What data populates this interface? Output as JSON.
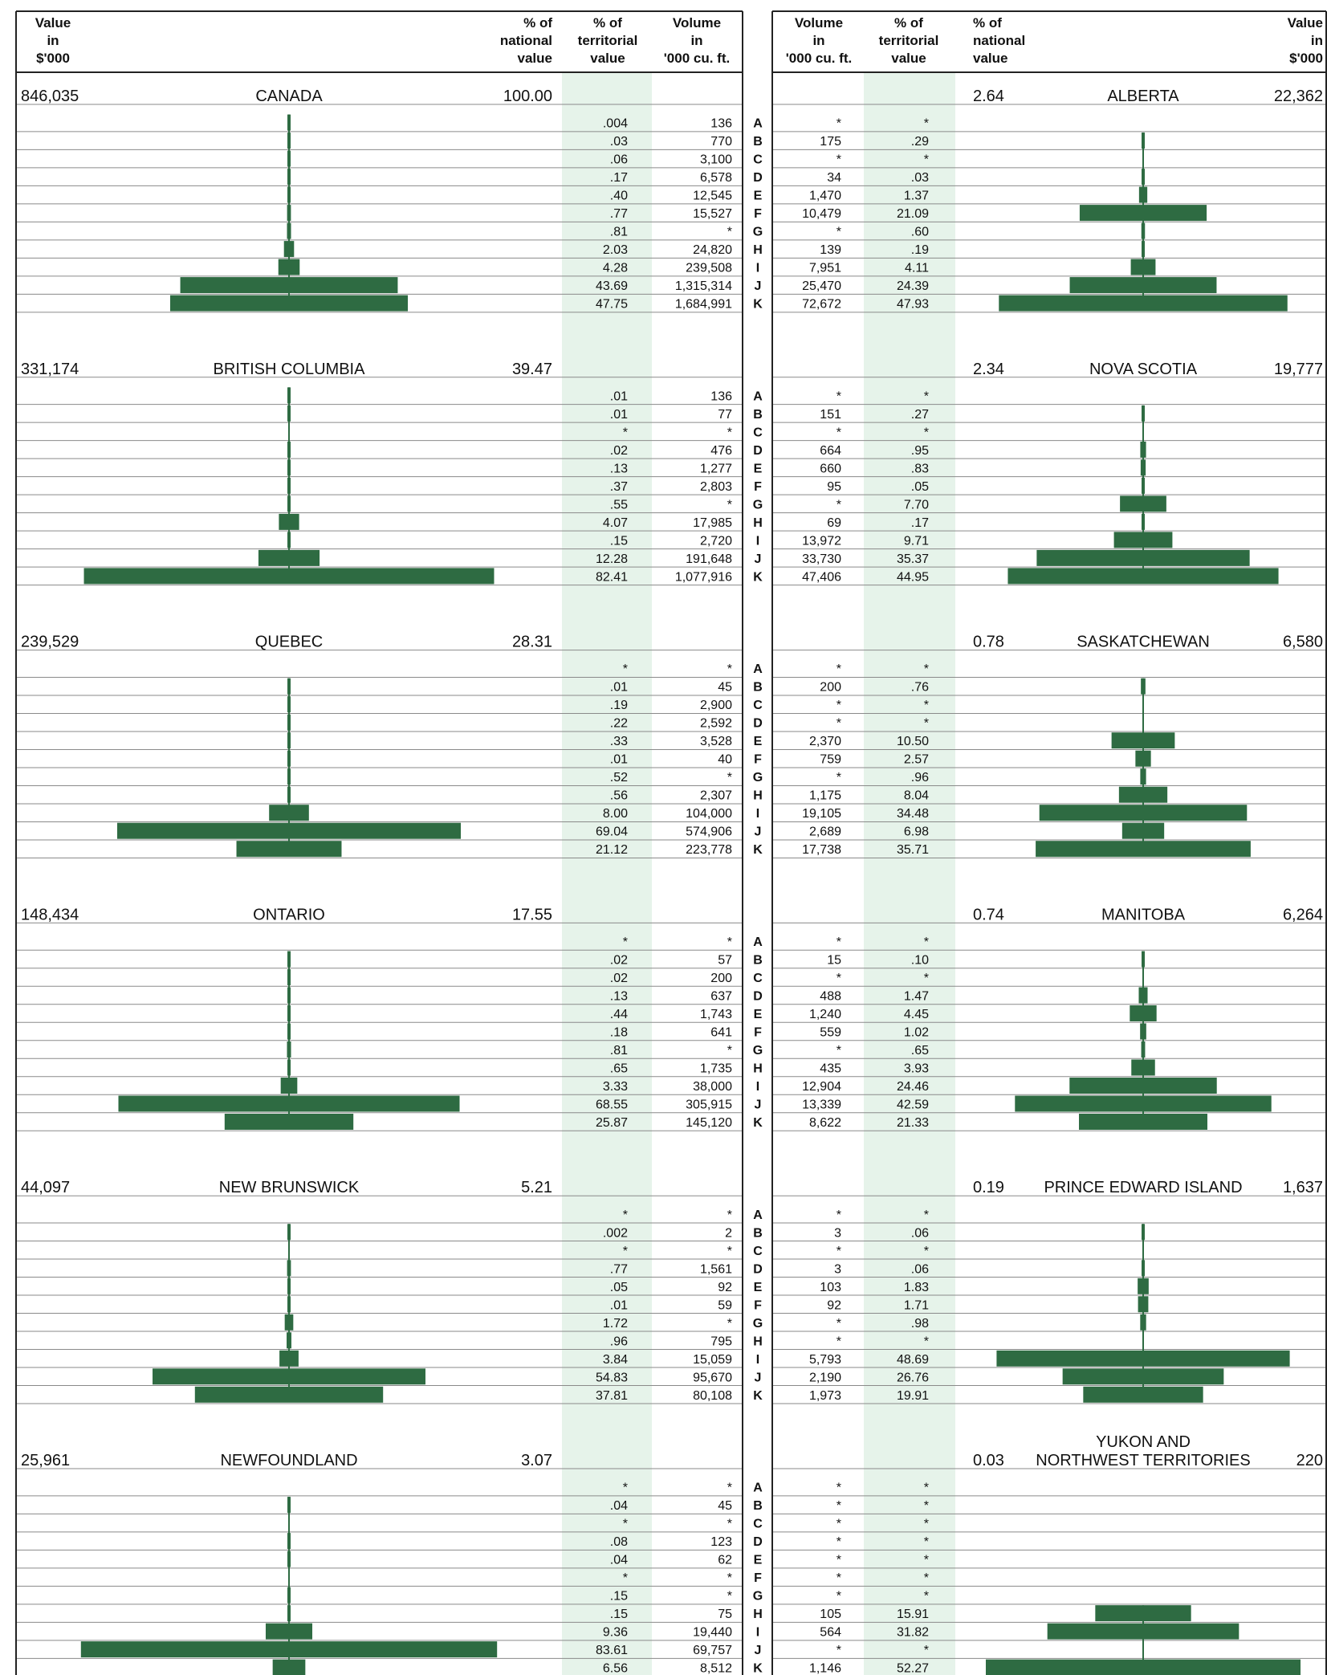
{
  "headers": {
    "left": {
      "value": [
        "Value",
        "in",
        "$'000"
      ],
      "pct_national": [
        "% of",
        "national",
        "value"
      ],
      "pct_territorial": [
        "% of",
        "territorial",
        "value"
      ],
      "volume": [
        "Volume",
        "in",
        "'000 cu. ft."
      ]
    },
    "right": {
      "volume": [
        "Volume",
        "in",
        "'000 cu. ft."
      ],
      "pct_territorial": [
        "% of",
        "territorial",
        "value"
      ],
      "pct_national": [
        "% of",
        "national",
        "value"
      ],
      "value": [
        "Value",
        "in",
        "$'000"
      ]
    }
  },
  "categories": [
    "A",
    "B",
    "C",
    "D",
    "E",
    "F",
    "G",
    "H",
    "I",
    "J",
    "K"
  ],
  "colors": {
    "bar": "#2e6b42",
    "band": "#e6f3ea",
    "rule": "#8a8a8a",
    "frame": "#222222"
  },
  "chart_data": {
    "type": "bar",
    "orientation": "horizontal-centered",
    "categories": [
      "A",
      "B",
      "C",
      "D",
      "E",
      "F",
      "G",
      "H",
      "I",
      "J",
      "K"
    ],
    "unit_note": "*",
    "left_panels": [
      {
        "name": "CANADA",
        "value": "846,035",
        "pct_national": "100.00",
        "pct_territorial": [
          ".004",
          ".03",
          ".06",
          ".17",
          ".40",
          ".77",
          ".81",
          "2.03",
          "4.28",
          "43.69",
          "47.75"
        ],
        "volume": [
          "136",
          "770",
          "3,100",
          "6,578",
          "12,545",
          "15,527",
          "*",
          "24,820",
          "239,508",
          "1,315,314",
          "1,684,991"
        ],
        "bars": [
          0.004,
          0.03,
          0.06,
          0.17,
          0.4,
          0.77,
          0.81,
          2.03,
          4.28,
          43.69,
          47.75
        ]
      },
      {
        "name": "BRITISH COLUMBIA",
        "value": "331,174",
        "pct_national": "39.47",
        "pct_territorial": [
          ".01",
          ".01",
          "*",
          ".02",
          ".13",
          ".37",
          ".55",
          "4.07",
          ".15",
          "12.28",
          "82.41"
        ],
        "volume": [
          "136",
          "77",
          "*",
          "476",
          "1,277",
          "2,803",
          "*",
          "17,985",
          "2,720",
          "191,648",
          "1,077,916"
        ],
        "bars": [
          0.01,
          0.01,
          0,
          0.02,
          0.13,
          0.37,
          0.55,
          4.07,
          0.15,
          12.28,
          82.41
        ]
      },
      {
        "name": "QUEBEC",
        "value": "239,529",
        "pct_national": "28.31",
        "pct_territorial": [
          "*",
          ".01",
          ".19",
          ".22",
          ".33",
          ".01",
          ".52",
          ".56",
          "8.00",
          "69.04",
          "21.12"
        ],
        "volume": [
          "*",
          "45",
          "2,900",
          "2,592",
          "3,528",
          "40",
          "*",
          "2,307",
          "104,000",
          "574,906",
          "223,778"
        ],
        "bars": [
          0,
          0.01,
          0.19,
          0.22,
          0.33,
          0.01,
          0.52,
          0.56,
          8.0,
          69.04,
          21.12
        ]
      },
      {
        "name": "ONTARIO",
        "value": "148,434",
        "pct_national": "17.55",
        "pct_territorial": [
          "*",
          ".02",
          ".02",
          ".13",
          ".44",
          ".18",
          ".81",
          ".65",
          "3.33",
          "68.55",
          "25.87"
        ],
        "volume": [
          "*",
          "57",
          "200",
          "637",
          "1,743",
          "641",
          "*",
          "1,735",
          "38,000",
          "305,915",
          "145,120"
        ],
        "bars": [
          0,
          0.02,
          0.02,
          0.13,
          0.44,
          0.18,
          0.81,
          0.65,
          3.33,
          68.55,
          25.87
        ]
      },
      {
        "name": "NEW BRUNSWICK",
        "value": "44,097",
        "pct_national": "5.21",
        "pct_territorial": [
          "*",
          ".002",
          "*",
          ".77",
          ".05",
          ".01",
          "1.72",
          ".96",
          "3.84",
          "54.83",
          "37.81"
        ],
        "volume": [
          "*",
          "2",
          "*",
          "1,561",
          "92",
          "59",
          "*",
          "795",
          "15,059",
          "95,670",
          "80,108"
        ],
        "bars": [
          0,
          0.002,
          0,
          0.77,
          0.05,
          0.01,
          1.72,
          0.96,
          3.84,
          54.83,
          37.81
        ]
      },
      {
        "name": "NEWFOUNDLAND",
        "value": "25,961",
        "pct_national": "3.07",
        "pct_territorial": [
          "*",
          ".04",
          "*",
          ".08",
          ".04",
          "*",
          ".15",
          ".15",
          "9.36",
          "83.61",
          "6.56"
        ],
        "volume": [
          "*",
          "45",
          "*",
          "123",
          "62",
          "*",
          "*",
          "75",
          "19,440",
          "69,757",
          "8,512"
        ],
        "bars": [
          0,
          0.04,
          0,
          0.08,
          0.04,
          0,
          0.15,
          0.15,
          9.36,
          83.61,
          6.56
        ]
      }
    ],
    "right_panels": [
      {
        "name": [
          "ALBERTA"
        ],
        "value": "22,362",
        "pct_national": "2.64",
        "volume": [
          "*",
          "175",
          "*",
          "34",
          "1,470",
          "10,479",
          "*",
          "139",
          "7,951",
          "25,470",
          "72,672"
        ],
        "pct_territorial": [
          "*",
          ".29",
          "*",
          ".03",
          "1.37",
          "21.09",
          ".60",
          ".19",
          "4.11",
          "24.39",
          "47.93"
        ],
        "bars": [
          0,
          0.29,
          0,
          0.03,
          1.37,
          21.09,
          0.6,
          0.19,
          4.11,
          24.39,
          47.93
        ]
      },
      {
        "name": [
          "NOVA SCOTIA"
        ],
        "value": "19,777",
        "pct_national": "2.34",
        "volume": [
          "*",
          "151",
          "*",
          "664",
          "660",
          "95",
          "*",
          "69",
          "13,972",
          "33,730",
          "47,406"
        ],
        "pct_territorial": [
          "*",
          ".27",
          "*",
          ".95",
          ".83",
          ".05",
          "7.70",
          ".17",
          "9.71",
          "35.37",
          "44.95"
        ],
        "bars": [
          0,
          0.27,
          0,
          0.95,
          0.83,
          0.05,
          7.7,
          0.17,
          9.71,
          35.37,
          44.95
        ]
      },
      {
        "name": [
          "SASKATCHEWAN"
        ],
        "value": "6,580",
        "pct_national": "0.78",
        "volume": [
          "*",
          "200",
          "*",
          "*",
          "2,370",
          "759",
          "*",
          "1,175",
          "19,105",
          "2,689",
          "17,738"
        ],
        "pct_territorial": [
          "*",
          ".76",
          "*",
          "*",
          "10.50",
          "2.57",
          ".96",
          "8.04",
          "34.48",
          "6.98",
          "35.71"
        ],
        "bars": [
          0,
          0.76,
          0,
          0,
          10.5,
          2.57,
          0.96,
          8.04,
          34.48,
          6.98,
          35.71
        ]
      },
      {
        "name": [
          "MANITOBA"
        ],
        "value": "6,264",
        "pct_national": "0.74",
        "volume": [
          "*",
          "15",
          "*",
          "488",
          "1,240",
          "559",
          "*",
          "435",
          "12,904",
          "13,339",
          "8,622"
        ],
        "pct_territorial": [
          "*",
          ".10",
          "*",
          "1.47",
          "4.45",
          "1.02",
          ".65",
          "3.93",
          "24.46",
          "42.59",
          "21.33"
        ],
        "bars": [
          0,
          0.1,
          0,
          1.47,
          4.45,
          1.02,
          0.65,
          3.93,
          24.46,
          42.59,
          21.33
        ]
      },
      {
        "name": [
          "PRINCE EDWARD ISLAND"
        ],
        "value": "1,637",
        "pct_national": "0.19",
        "volume": [
          "*",
          "3",
          "*",
          "3",
          "103",
          "92",
          "*",
          "*",
          "5,793",
          "2,190",
          "1,973"
        ],
        "pct_territorial": [
          "*",
          ".06",
          "*",
          ".06",
          "1.83",
          "1.71",
          ".98",
          "*",
          "48.69",
          "26.76",
          "19.91"
        ],
        "bars": [
          0,
          0.06,
          0,
          0.06,
          1.83,
          1.71,
          0.98,
          0,
          48.69,
          26.76,
          19.91
        ]
      },
      {
        "name": [
          "YUKON AND",
          "NORTHWEST TERRITORIES"
        ],
        "value": "220",
        "pct_national": "0.03",
        "volume": [
          "*",
          "*",
          "*",
          "*",
          "*",
          "*",
          "*",
          "105",
          "564",
          "*",
          "1,146"
        ],
        "pct_territorial": [
          "*",
          "*",
          "*",
          "*",
          "*",
          "*",
          "*",
          "15.91",
          "31.82",
          "*",
          "52.27"
        ],
        "bars": [
          0,
          0,
          0,
          0,
          0,
          0,
          0,
          15.91,
          31.82,
          0,
          52.27
        ]
      }
    ]
  }
}
